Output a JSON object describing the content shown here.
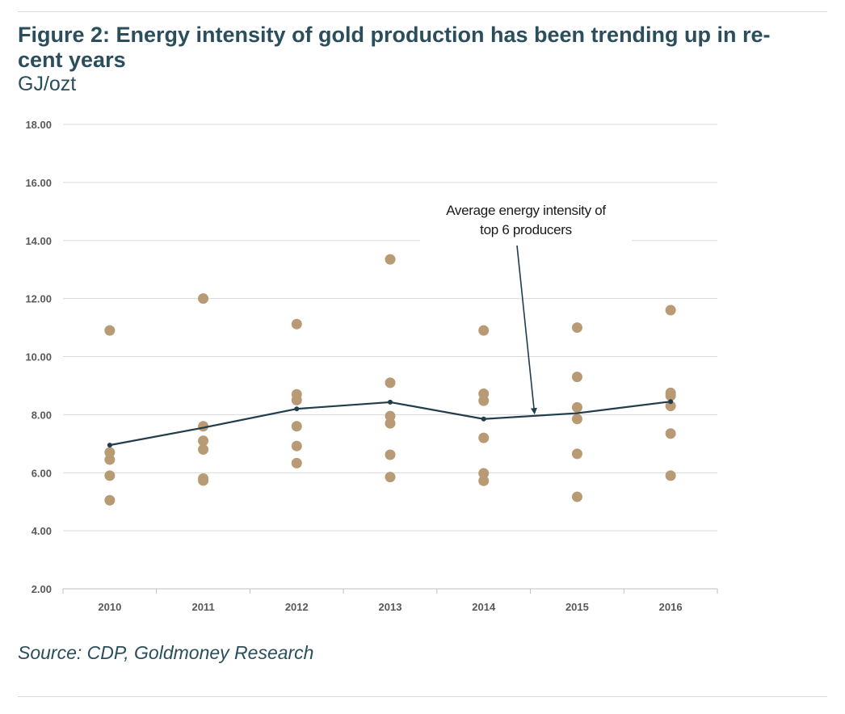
{
  "figure": {
    "title": "Figure 2: Energy intensity of gold production has been trending up in re-cent years",
    "unit": "GJ/ozt",
    "source": "Source: CDP, Goldmoney Research"
  },
  "colors": {
    "title": "#2b4e5c",
    "dots": "#b89a74",
    "line": "#1f3d4a",
    "grid": "#d9d9d9"
  },
  "chart_data": {
    "type": "scatter",
    "categories": [
      "2010",
      "2011",
      "2012",
      "2013",
      "2014",
      "2015",
      "2016"
    ],
    "ylim": [
      2,
      18
    ],
    "yticks": [
      "2.00",
      "4.00",
      "6.00",
      "8.00",
      "10.00",
      "12.00",
      "14.00",
      "16.00",
      "18.00"
    ],
    "grid": true,
    "series": [
      {
        "type": "scatter",
        "points": [
          [
            10.9,
            6.7,
            6.45,
            5.9,
            5.05
          ],
          [
            12.0,
            7.6,
            7.1,
            6.8,
            5.8,
            5.73
          ],
          [
            11.12,
            8.7,
            8.5,
            7.6,
            6.92,
            6.33
          ],
          [
            13.35,
            9.1,
            7.95,
            7.7,
            6.62,
            5.85
          ],
          [
            10.9,
            8.72,
            8.48,
            7.2,
            5.98,
            5.72
          ],
          [
            11.0,
            9.3,
            8.25,
            7.85,
            6.65,
            5.17
          ],
          [
            11.6,
            8.75,
            8.65,
            8.3,
            7.35,
            5.9
          ]
        ]
      },
      {
        "type": "line",
        "values": [
          6.95,
          7.55,
          8.2,
          8.43,
          7.85,
          8.05,
          8.45
        ],
        "markers": [
          true,
          false,
          true,
          true,
          true,
          false,
          true
        ]
      }
    ],
    "annotation": {
      "lines": [
        "Average energy intensity of",
        "top 6 producers"
      ],
      "points_to": {
        "x": "2015",
        "y": 7.95
      }
    }
  }
}
